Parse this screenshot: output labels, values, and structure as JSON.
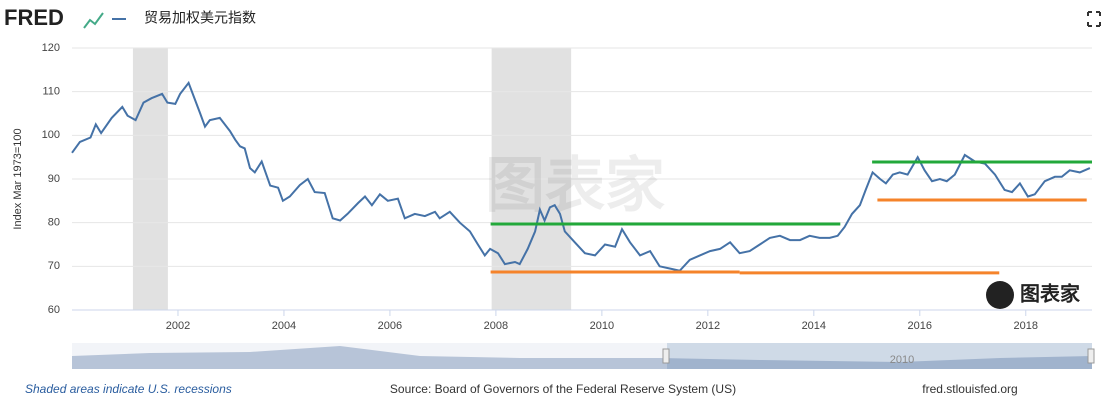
{
  "brand": "FRED",
  "footer": {
    "note": "Shaded areas indicate U.S. recessions",
    "source": "Source: Board of Governors of the Federal Reserve System (US)",
    "site": "fred.stlouisfed.org"
  },
  "watermark": "图表家",
  "navigator_label": "2010",
  "chart_data": {
    "type": "line",
    "title": "贸易加权美元指数",
    "ylabel": "Index Mar 1973=100",
    "xlim": [
      2000,
      2019.25
    ],
    "xticks": [
      2002,
      2004,
      2006,
      2008,
      2010,
      2012,
      2014,
      2016,
      2018
    ],
    "ylim": [
      60,
      120
    ],
    "yticks": [
      60,
      70,
      80,
      90,
      100,
      110,
      120
    ],
    "grid": true,
    "recessions": [
      {
        "start": 2001.15,
        "end": 2001.81
      },
      {
        "start": 2007.92,
        "end": 2009.42
      }
    ],
    "reference_lines": [
      {
        "color": "#22a83a",
        "value": 79.7,
        "start": 2007.9,
        "end": 2014.5
      },
      {
        "color": "#22a83a",
        "value": 93.9,
        "start": 2015.1,
        "end": 2019.25
      },
      {
        "color": "#f5832a",
        "value": 68.7,
        "start": 2007.9,
        "end": 2012.6
      },
      {
        "color": "#f5832a",
        "value": 68.5,
        "start": 2012.6,
        "end": 2017.5
      },
      {
        "color": "#f5832a",
        "value": 85.2,
        "start": 2015.2,
        "end": 2019.15
      }
    ],
    "x": [
      2000.0,
      2000.15,
      2000.35,
      2000.45,
      2000.55,
      2000.75,
      2000.95,
      2001.05,
      2001.2,
      2001.35,
      2001.5,
      2001.7,
      2001.8,
      2001.95,
      2002.04,
      2002.2,
      2002.42,
      2002.51,
      2002.6,
      2002.79,
      2002.98,
      2003.08,
      2003.17,
      2003.26,
      2003.36,
      2003.45,
      2003.58,
      2003.74,
      2003.89,
      2003.98,
      2004.11,
      2004.3,
      2004.45,
      2004.58,
      2004.77,
      2004.92,
      2005.06,
      2005.2,
      2005.4,
      2005.53,
      2005.66,
      2005.81,
      2005.96,
      2006.15,
      2006.28,
      2006.47,
      2006.66,
      2006.85,
      2006.94,
      2007.13,
      2007.32,
      2007.51,
      2007.66,
      2007.79,
      2007.89,
      2008.04,
      2008.17,
      2008.36,
      2008.45,
      2008.6,
      2008.74,
      2008.83,
      2008.92,
      2009.02,
      2009.11,
      2009.21,
      2009.3,
      2009.49,
      2009.68,
      2009.87,
      2010.06,
      2010.25,
      2010.38,
      2010.53,
      2010.72,
      2010.91,
      2011.09,
      2011.28,
      2011.47,
      2011.66,
      2011.85,
      2012.04,
      2012.23,
      2012.42,
      2012.6,
      2012.79,
      2012.98,
      2013.17,
      2013.36,
      2013.55,
      2013.74,
      2013.92,
      2014.11,
      2014.3,
      2014.45,
      2014.58,
      2014.72,
      2014.87,
      2014.98,
      2015.11,
      2015.25,
      2015.36,
      2015.49,
      2015.62,
      2015.77,
      2015.96,
      2016.09,
      2016.23,
      2016.38,
      2016.51,
      2016.66,
      2016.85,
      2017.04,
      2017.23,
      2017.42,
      2017.6,
      2017.74,
      2017.89,
      2018.04,
      2018.17,
      2018.36,
      2018.55,
      2018.68,
      2018.83,
      2019.02,
      2019.21
    ],
    "series": [
      {
        "name": "贸易加权美元指数",
        "color": "#4572a7",
        "values": [
          96.0,
          98.5,
          99.5,
          102.5,
          100.5,
          104,
          106.5,
          104.5,
          103.5,
          107.5,
          108.5,
          109.5,
          107.5,
          107.2,
          109.5,
          112,
          105,
          102,
          103.5,
          104,
          101,
          99,
          97.5,
          97,
          92.5,
          91.5,
          94,
          88.5,
          88,
          85,
          86,
          88.6,
          90,
          87,
          86.8,
          81,
          80.5,
          82,
          84.5,
          86,
          84,
          86.5,
          85,
          85.5,
          81,
          82,
          81.5,
          82.5,
          81,
          82.5,
          80,
          78,
          75,
          72.5,
          74,
          73,
          70.5,
          71,
          70.5,
          74,
          78,
          83,
          80.5,
          83.5,
          84,
          82,
          78,
          75.5,
          73,
          72.5,
          75,
          74.5,
          78.5,
          75.5,
          72.5,
          73.5,
          70,
          69.5,
          69,
          71.5,
          72.5,
          73.5,
          74,
          75.5,
          73,
          73.5,
          75,
          76.5,
          77,
          76,
          76,
          77,
          76.5,
          76.5,
          77,
          79,
          82,
          84,
          87.5,
          91.5,
          90,
          89,
          91,
          91.5,
          91,
          95,
          92,
          89.5,
          90,
          89.5,
          91,
          95.5,
          94,
          93.5,
          91,
          87.5,
          87,
          89,
          86,
          86.5,
          89.5,
          90.5,
          90.5,
          92,
          91.5,
          92.5
        ]
      }
    ]
  }
}
